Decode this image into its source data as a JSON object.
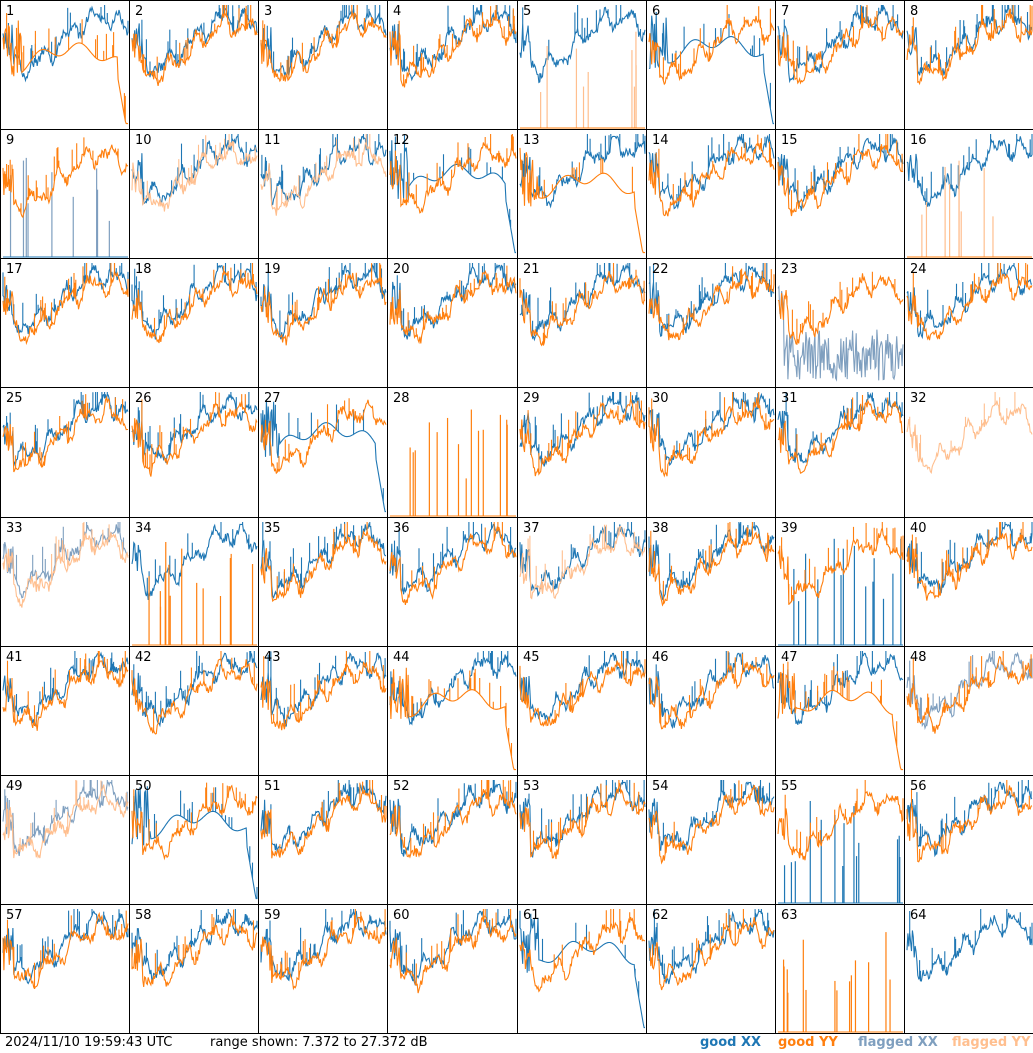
{
  "footer": {
    "timestamp": "2024/11/10 19:59:43 UTC",
    "range_text": "range shown: 7.372 to 27.372 dB"
  },
  "legend": [
    {
      "key": "gx",
      "label": "good XX",
      "color": "#1f77b4"
    },
    {
      "key": "gy",
      "label": "good YY",
      "color": "#ff7f0e"
    },
    {
      "key": "fx",
      "label": "flagged XX",
      "color": "#7f9fbf"
    },
    {
      "key": "fy",
      "label": "flagged YY",
      "color": "#ffbf8f"
    }
  ],
  "chart_data": {
    "type": "line",
    "layout": "8x8 small multiples",
    "ylim": [
      7.372,
      27.372
    ],
    "y_unit": "dB",
    "series_types": [
      "good XX",
      "good YY",
      "flagged XX",
      "flagged YY"
    ],
    "panels": [
      {
        "id": 1,
        "x": "good",
        "y": "dropoff"
      },
      {
        "id": 2,
        "x": "good",
        "y": "good"
      },
      {
        "id": 3,
        "x": "good",
        "y": "good"
      },
      {
        "id": 4,
        "x": "good",
        "y": "good"
      },
      {
        "id": 5,
        "x": "good",
        "y": "flagged-spikes"
      },
      {
        "id": 6,
        "x": "dropoff",
        "y": "good"
      },
      {
        "id": 7,
        "x": "good",
        "y": "good"
      },
      {
        "id": 8,
        "x": "good",
        "y": "good"
      },
      {
        "id": 9,
        "x": "flagged-spikes",
        "y": "good"
      },
      {
        "id": 10,
        "x": "good",
        "y": "flagged"
      },
      {
        "id": 11,
        "x": "good",
        "y": "flagged"
      },
      {
        "id": 12,
        "x": "dropoff",
        "y": "good"
      },
      {
        "id": 13,
        "x": "good",
        "y": "dropoff"
      },
      {
        "id": 14,
        "x": "good",
        "y": "good"
      },
      {
        "id": 15,
        "x": "good",
        "y": "good"
      },
      {
        "id": 16,
        "x": "good",
        "y": "flagged-spikes"
      },
      {
        "id": 17,
        "x": "good",
        "y": "good"
      },
      {
        "id": 18,
        "x": "good",
        "y": "good"
      },
      {
        "id": 19,
        "x": "good",
        "y": "good"
      },
      {
        "id": 20,
        "x": "good",
        "y": "good"
      },
      {
        "id": 21,
        "x": "good",
        "y": "good"
      },
      {
        "id": 22,
        "x": "good",
        "y": "good"
      },
      {
        "id": 23,
        "x": "flagged-noisy",
        "y": "good"
      },
      {
        "id": 24,
        "x": "good",
        "y": "good"
      },
      {
        "id": 25,
        "x": "good",
        "y": "good"
      },
      {
        "id": 26,
        "x": "good",
        "y": "good"
      },
      {
        "id": 27,
        "x": "dropoff",
        "y": "good"
      },
      {
        "id": 28,
        "x": "none",
        "y": "spikes"
      },
      {
        "id": 29,
        "x": "good",
        "y": "good"
      },
      {
        "id": 30,
        "x": "good",
        "y": "good"
      },
      {
        "id": 31,
        "x": "good",
        "y": "good"
      },
      {
        "id": 32,
        "x": "none",
        "y": "flagged"
      },
      {
        "id": 33,
        "x": "flagged",
        "y": "flagged"
      },
      {
        "id": 34,
        "x": "good",
        "y": "spikes"
      },
      {
        "id": 35,
        "x": "good",
        "y": "good"
      },
      {
        "id": 36,
        "x": "good",
        "y": "good"
      },
      {
        "id": 37,
        "x": "good",
        "y": "flagged"
      },
      {
        "id": 38,
        "x": "good",
        "y": "good"
      },
      {
        "id": 39,
        "x": "spikes",
        "y": "good"
      },
      {
        "id": 40,
        "x": "good",
        "y": "good"
      },
      {
        "id": 41,
        "x": "good",
        "y": "good"
      },
      {
        "id": 42,
        "x": "good",
        "y": "good"
      },
      {
        "id": 43,
        "x": "good",
        "y": "good"
      },
      {
        "id": 44,
        "x": "good",
        "y": "dropoff"
      },
      {
        "id": 45,
        "x": "good",
        "y": "good"
      },
      {
        "id": 46,
        "x": "good",
        "y": "good"
      },
      {
        "id": 47,
        "x": "good",
        "y": "dropoff"
      },
      {
        "id": 48,
        "x": "flagged",
        "y": "good"
      },
      {
        "id": 49,
        "x": "flagged",
        "y": "flagged"
      },
      {
        "id": 50,
        "x": "dropoff",
        "y": "good"
      },
      {
        "id": 51,
        "x": "good",
        "y": "good"
      },
      {
        "id": 52,
        "x": "good",
        "y": "good"
      },
      {
        "id": 53,
        "x": "good",
        "y": "good"
      },
      {
        "id": 54,
        "x": "good",
        "y": "good"
      },
      {
        "id": 55,
        "x": "spikes",
        "y": "good"
      },
      {
        "id": 56,
        "x": "good",
        "y": "good"
      },
      {
        "id": 57,
        "x": "good",
        "y": "good"
      },
      {
        "id": 58,
        "x": "good",
        "y": "good"
      },
      {
        "id": 59,
        "x": "good",
        "y": "good"
      },
      {
        "id": 60,
        "x": "good",
        "y": "good"
      },
      {
        "id": 61,
        "x": "dropoff",
        "y": "good"
      },
      {
        "id": 62,
        "x": "good",
        "y": "good"
      },
      {
        "id": 63,
        "x": "none",
        "y": "spikes"
      },
      {
        "id": 64,
        "x": "good",
        "y": "none"
      }
    ]
  }
}
